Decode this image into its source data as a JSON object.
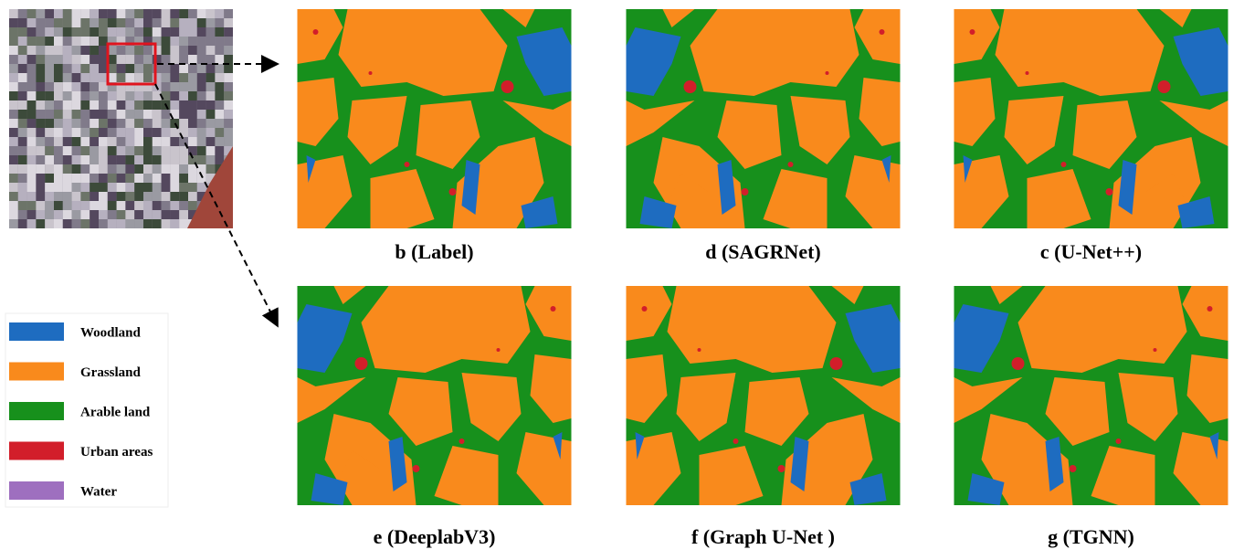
{
  "legend": [
    {
      "label": "Woodland",
      "color": "#1e6cc0"
    },
    {
      "label": "Grassland",
      "color": "#f98a1c"
    },
    {
      "label": "Arable land",
      "color": "#17901c"
    },
    {
      "label": "Urban areas",
      "color": "#d21e2a"
    },
    {
      "label": "Water",
      "color": "#9e6fbf"
    }
  ],
  "panels": [
    {
      "caption": "b (Label)"
    },
    {
      "caption": "d (SAGRNet)"
    },
    {
      "caption": "c (U-Net++)"
    },
    {
      "caption": "e (DeeplabV3)"
    },
    {
      "caption": "f (Graph U-Net )"
    },
    {
      "caption": "g (TGNN)"
    }
  ]
}
